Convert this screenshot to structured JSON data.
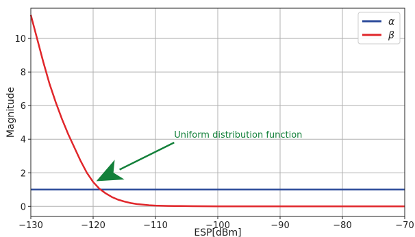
{
  "chart_data": {
    "type": "line",
    "title": "",
    "xlabel": "ESP[dBm]",
    "ylabel": "Magnitude",
    "xlim": [
      -130,
      -70
    ],
    "ylim": [
      -0.6,
      11.8
    ],
    "xticks": [
      -130,
      -120,
      -110,
      -100,
      -90,
      -80,
      -70
    ],
    "yticks": [
      0,
      2,
      4,
      6,
      8,
      10
    ],
    "grid": true,
    "legend_position": "top-right",
    "series": [
      {
        "name": "α",
        "color": "#2b4a9a",
        "x": [
          -130,
          -70
        ],
        "y": [
          1,
          1
        ]
      },
      {
        "name": "β",
        "color": "#e0262a",
        "x": [
          -130,
          -129,
          -128,
          -127,
          -126,
          -125,
          -124,
          -123,
          -122,
          -121,
          -120,
          -119,
          -118,
          -117,
          -116,
          -115,
          -114,
          -113,
          -112,
          -111,
          -110,
          -108,
          -106,
          -104,
          -102,
          -100,
          -95,
          -90,
          -85,
          -80,
          -75,
          -70
        ],
        "y": [
          11.4,
          10.0,
          8.6,
          7.3,
          6.2,
          5.2,
          4.3,
          3.5,
          2.7,
          2.0,
          1.45,
          1.05,
          0.78,
          0.56,
          0.4,
          0.29,
          0.2,
          0.14,
          0.1,
          0.07,
          0.05,
          0.03,
          0.018,
          0.01,
          0.006,
          0.004,
          0.002,
          0.001,
          0.0,
          0.0,
          0.0,
          0.0
        ]
      }
    ],
    "annotation": {
      "text": "Uniform distribution function",
      "color": "#13803a",
      "text_x": -107,
      "text_y": 4.1,
      "arrow_from_x": -107,
      "arrow_from_y": 3.8,
      "arrow_to_x": -119.5,
      "arrow_to_y": 1.5
    }
  }
}
